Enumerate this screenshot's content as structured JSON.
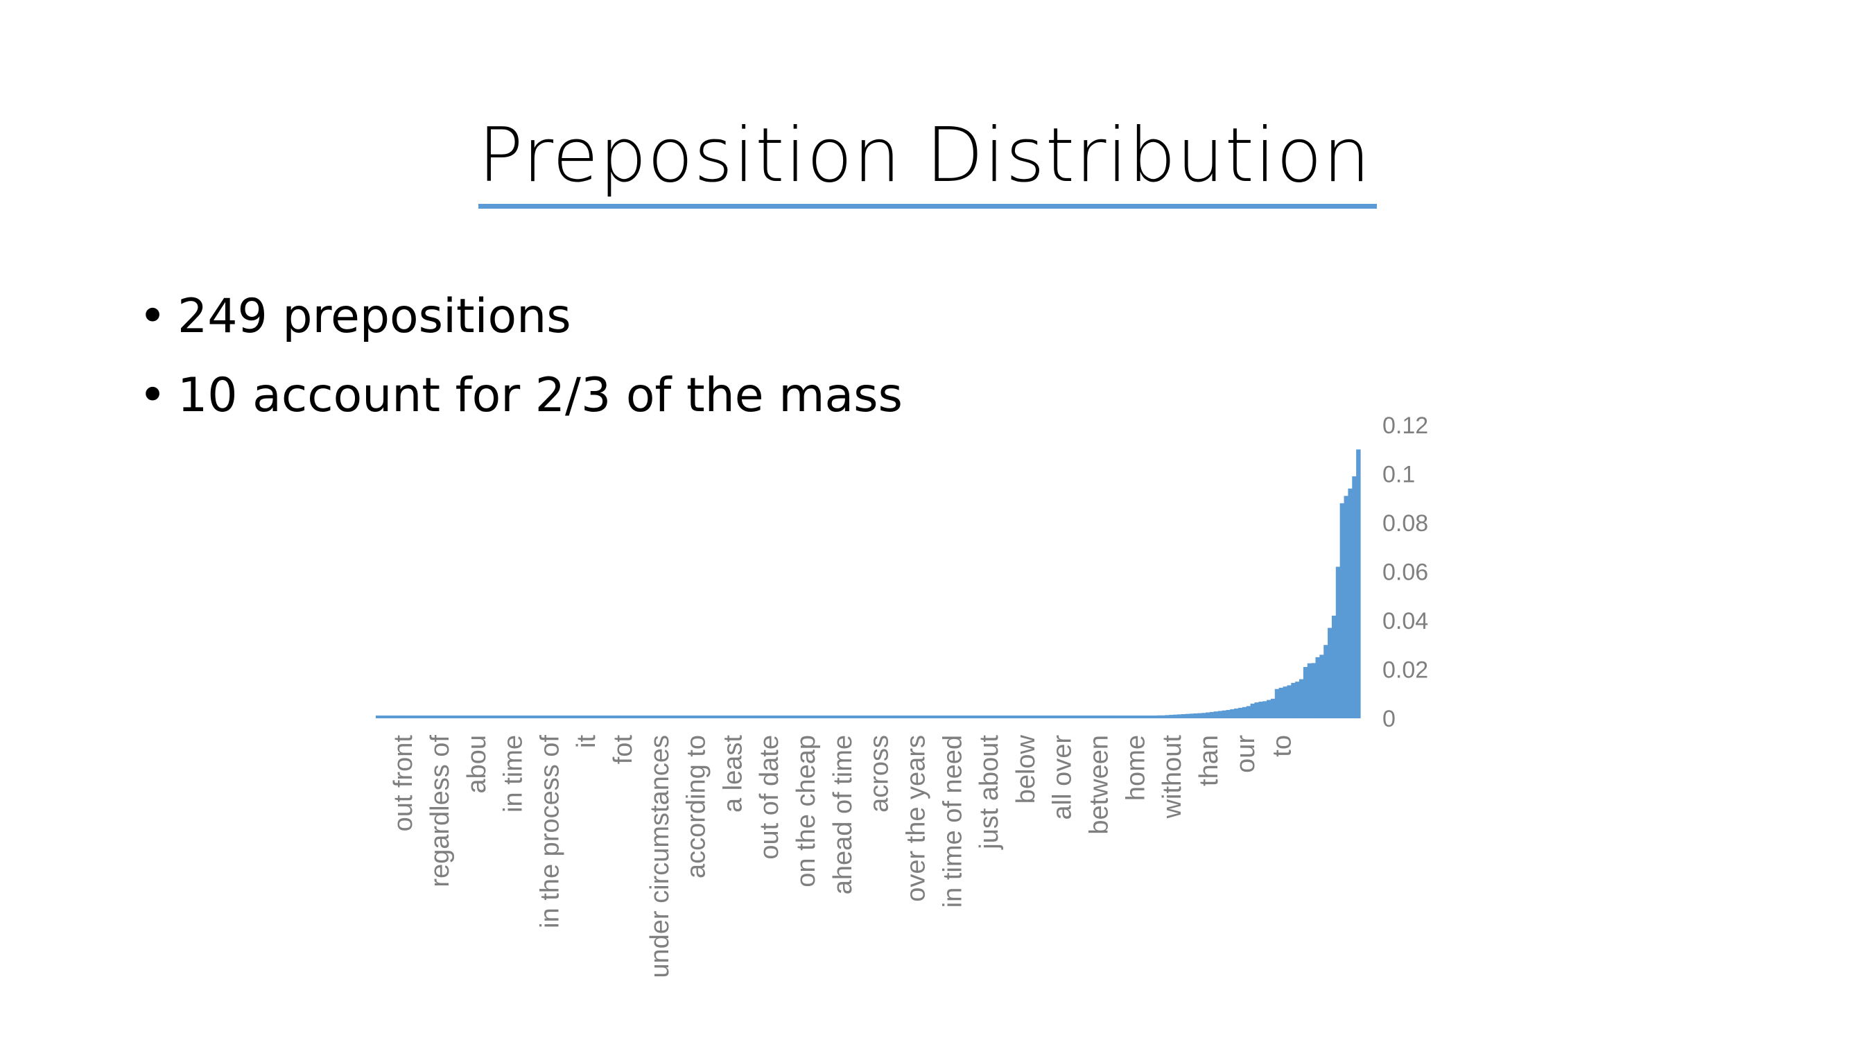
{
  "slide": {
    "title": "Preposition Distribution",
    "bullets": [
      "249 prepositions",
      "10 account for 2/3 of the mass"
    ],
    "accent_color": "#5b9bd5"
  },
  "chart_data": {
    "type": "bar",
    "title": "",
    "xlabel": "",
    "ylabel": "",
    "bar_color": "#5b9bd5",
    "ylim": [
      0,
      0.12
    ],
    "yticks": [
      0,
      0.02,
      0.04,
      0.06,
      0.08,
      0.1,
      0.12
    ],
    "y_axis_position": "right",
    "num_categories": 249,
    "category_labels": [
      {
        "index": 6,
        "label": "out front"
      },
      {
        "index": 15,
        "label": "regardless of"
      },
      {
        "index": 24,
        "label": "abou"
      },
      {
        "index": 33,
        "label": "in time"
      },
      {
        "index": 42,
        "label": "in the process of"
      },
      {
        "index": 51,
        "label": "it"
      },
      {
        "index": 60,
        "label": "fot"
      },
      {
        "index": 69,
        "label": "under circumstances"
      },
      {
        "index": 78,
        "label": "according to"
      },
      {
        "index": 87,
        "label": "a least"
      },
      {
        "index": 96,
        "label": "out of date"
      },
      {
        "index": 105,
        "label": "on the cheap"
      },
      {
        "index": 114,
        "label": "ahead of time"
      },
      {
        "index": 123,
        "label": "across"
      },
      {
        "index": 132,
        "label": "over the years"
      },
      {
        "index": 141,
        "label": "in time of need"
      },
      {
        "index": 150,
        "label": "just about"
      },
      {
        "index": 159,
        "label": "below"
      },
      {
        "index": 168,
        "label": "all over"
      },
      {
        "index": 177,
        "label": "between"
      },
      {
        "index": 186,
        "label": "home"
      },
      {
        "index": 195,
        "label": "without"
      },
      {
        "index": 204,
        "label": "than"
      },
      {
        "index": 213,
        "label": "our"
      },
      {
        "index": 222,
        "label": "to"
      }
    ],
    "head_values": [
      0.0002,
      0.0002,
      0.0002,
      0.0002,
      0.0002,
      0.0002,
      0.0002,
      0.0002,
      0.0002,
      0.0002,
      0.0002,
      0.0002,
      0.0002,
      0.0002,
      0.0002,
      0.0002,
      0.0002,
      0.0002,
      0.0002,
      0.0002,
      0.0002,
      0.0002,
      0.0002,
      0.0002,
      0.0002,
      0.0002,
      0.0002,
      0.0002,
      0.0002,
      0.0002,
      0.0002,
      0.0002,
      0.0002,
      0.0002,
      0.0002,
      0.0002,
      0.0002,
      0.0002,
      0.0002,
      0.0002,
      0.0002,
      0.0002,
      0.0002,
      0.0002,
      0.0002,
      0.0002,
      0.0002,
      0.0002,
      0.0002,
      0.0002,
      0.0002,
      0.0002,
      0.0002,
      0.0002,
      0.0002,
      0.0002,
      0.0002,
      0.0002,
      0.0002,
      0.0002,
      0.0002,
      0.0002,
      0.0002,
      0.0002,
      0.0002,
      0.0002,
      0.0002,
      0.0002,
      0.0002,
      0.0002,
      0.0002,
      0.0002,
      0.0002,
      0.0002,
      0.0002,
      0.0002,
      0.0002,
      0.0002,
      0.0002,
      0.0002,
      0.0002,
      0.0002,
      0.0002,
      0.0002,
      0.0002,
      0.0002,
      0.0002,
      0.0002,
      0.0002,
      0.0002,
      0.0002,
      0.0002,
      0.0002,
      0.0002,
      0.0002,
      0.0002,
      0.0002,
      0.0002,
      0.0002,
      0.0002,
      0.0002,
      0.0002,
      0.0002,
      0.0002,
      0.0002,
      0.0002,
      0.0002,
      0.0002,
      0.0002,
      0.0002,
      0.0002,
      0.0002,
      0.0002,
      0.0002,
      0.0002,
      0.0003,
      0.0003,
      0.0003,
      0.0003,
      0.0003,
      0.0003,
      0.0003,
      0.0003,
      0.0003,
      0.0003,
      0.0003,
      0.0003,
      0.0003,
      0.0003,
      0.0003,
      0.0003,
      0.0003,
      0.0003,
      0.0003,
      0.0003,
      0.0003,
      0.0003,
      0.0003,
      0.0003,
      0.0003,
      0.0003,
      0.0003,
      0.0003,
      0.0003,
      0.0003,
      0.0003,
      0.0003,
      0.0003,
      0.0003,
      0.0003,
      0.0003,
      0.0003,
      0.0003,
      0.0003,
      0.0003,
      0.0003,
      0.0004,
      0.0004,
      0.0004,
      0.0004,
      0.0004,
      0.0004,
      0.0004,
      0.0004,
      0.0004,
      0.0004,
      0.0005,
      0.0005,
      0.0005,
      0.0005,
      0.0005,
      0.0005,
      0.0005,
      0.0006,
      0.0006,
      0.0006,
      0.0006,
      0.0006,
      0.0007,
      0.0007,
      0.0007,
      0.0007,
      0.0008,
      0.0008,
      0.0008,
      0.0009,
      0.0009,
      0.0009,
      0.001,
      0.001,
      0.0011,
      0.0011,
      0.0012,
      0.0012,
      0.0013,
      0.0014,
      0.0015,
      0.0016,
      0.0017,
      0.0018,
      0.0019,
      0.002,
      0.0021,
      0.0022,
      0.0024,
      0.0026,
      0.0028,
      0.003,
      0.0032,
      0.0034,
      0.0037,
      0.004,
      0.0043,
      0.0046,
      0.005,
      0.006,
      0.0065,
      0.0068,
      0.007,
      0.0075,
      0.008,
      0.012,
      0.0125,
      0.013,
      0.0135,
      0.0145,
      0.015,
      0.016,
      0.021,
      0.0225,
      0.0226
    ],
    "top_values": [
      0.025,
      0.026,
      0.03,
      0.037,
      0.042,
      0.062,
      0.088,
      0.091,
      0.094,
      0.099,
      0.11
    ]
  }
}
